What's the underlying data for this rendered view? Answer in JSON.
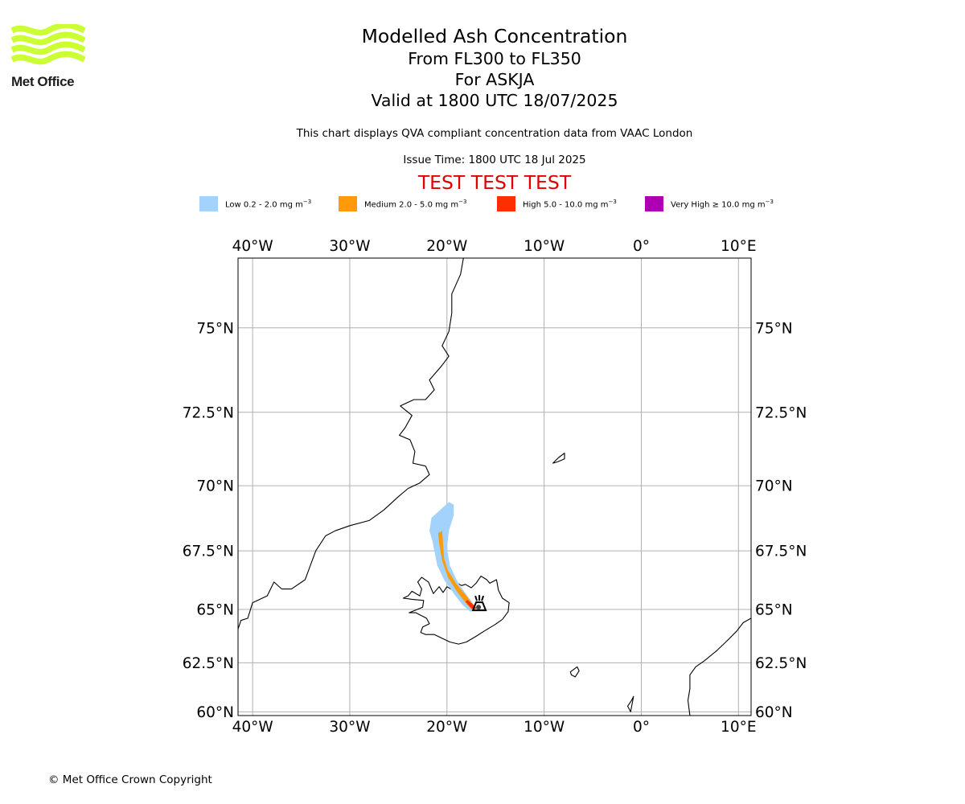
{
  "logo": {
    "text": "Met Office",
    "color": "#ccff33"
  },
  "titles": {
    "main": "Modelled Ash Concentration",
    "levels": "From FL300 to FL350",
    "volcano": "For ASKJA",
    "valid": "Valid at 1800 UTC 18/07/2025"
  },
  "notes": {
    "source": "This chart displays QVA compliant concentration data from VAAC London",
    "issue_time": "Issue Time: 1800 UTC 18 Jul 2025"
  },
  "banner": {
    "text": "TEST TEST TEST",
    "color": "#e00000"
  },
  "legend": [
    {
      "label": "Low 0.2 - 2.0 mg m",
      "unit_exp": "−3",
      "color": "#a3d3fd"
    },
    {
      "label": "Medium 2.0 - 5.0 mg m",
      "unit_exp": "−3",
      "color": "#ff9a0a"
    },
    {
      "label": "High 5.0 - 10.0 mg m",
      "unit_exp": "−3",
      "color": "#ff2e00"
    },
    {
      "label": "Very High  ≥  10.0 mg m",
      "unit_exp": "−3",
      "color": "#ad00b3"
    }
  ],
  "map": {
    "projection": "Mercator",
    "lon_range": [
      -41.5,
      11.3
    ],
    "lat_range": [
      59.8,
      76.8
    ],
    "gridlines": true,
    "lon_ticks": [
      {
        "value": -40,
        "label": "40°W"
      },
      {
        "value": -30,
        "label": "30°W"
      },
      {
        "value": -20,
        "label": "20°W"
      },
      {
        "value": -10,
        "label": "10°W"
      },
      {
        "value": 0,
        "label": "0°"
      },
      {
        "value": 10,
        "label": "10°E"
      }
    ],
    "lat_ticks": [
      {
        "value": 60,
        "label": "60°N"
      },
      {
        "value": 62.5,
        "label": "62.5°N"
      },
      {
        "value": 65,
        "label": "65°N"
      },
      {
        "value": 67.5,
        "label": "67.5°N"
      },
      {
        "value": 70,
        "label": "70°N"
      },
      {
        "value": 72.5,
        "label": "72.5°N"
      },
      {
        "value": 75,
        "label": "75°N"
      }
    ],
    "volcano_symbol": {
      "name": "ASKJA",
      "lon": -16.75,
      "lat": 65.03
    },
    "ash_low": [
      [
        -21.5,
        67.9
      ],
      [
        -21.8,
        68.3
      ],
      [
        -21.6,
        68.8
      ],
      [
        -20.7,
        69.1
      ],
      [
        -19.8,
        69.4
      ],
      [
        -19.3,
        69.3
      ],
      [
        -19.3,
        68.9
      ],
      [
        -19.8,
        68.3
      ],
      [
        -20.0,
        67.6
      ],
      [
        -19.7,
        66.9
      ],
      [
        -18.9,
        66.2
      ],
      [
        -17.9,
        65.6
      ],
      [
        -17.2,
        65.2
      ],
      [
        -16.9,
        65.0
      ],
      [
        -17.6,
        64.9
      ],
      [
        -18.4,
        65.2
      ],
      [
        -19.3,
        65.7
      ],
      [
        -20.3,
        66.3
      ],
      [
        -21.0,
        66.9
      ]
    ],
    "ash_medium": [
      [
        -20.8,
        67.8
      ],
      [
        -20.9,
        68.2
      ],
      [
        -20.5,
        68.3
      ],
      [
        -20.4,
        67.8
      ],
      [
        -20.3,
        67.2
      ],
      [
        -19.9,
        66.7
      ],
      [
        -19.0,
        66.1
      ],
      [
        -18.0,
        65.6
      ],
      [
        -17.3,
        65.2
      ],
      [
        -17.0,
        65.02
      ],
      [
        -17.5,
        65.0
      ],
      [
        -18.1,
        65.3
      ],
      [
        -19.0,
        65.8
      ],
      [
        -19.9,
        66.4
      ],
      [
        -20.5,
        67.1
      ]
    ],
    "ash_high": [
      [
        -17.9,
        65.42
      ],
      [
        -17.2,
        65.18
      ],
      [
        -16.95,
        65.05
      ],
      [
        -17.35,
        65.0
      ],
      [
        -17.7,
        65.15
      ],
      [
        -18.1,
        65.35
      ]
    ],
    "coastlines": {
      "iceland": [
        [
          -24.5,
          65.5
        ],
        [
          -24.0,
          65.6
        ],
        [
          -23.6,
          65.8
        ],
        [
          -22.8,
          65.6
        ],
        [
          -22.6,
          65.9
        ],
        [
          -23.0,
          66.2
        ],
        [
          -22.6,
          66.4
        ],
        [
          -21.9,
          66.2
        ],
        [
          -21.4,
          65.7
        ],
        [
          -20.8,
          66.0
        ],
        [
          -20.4,
          65.75
        ],
        [
          -20.0,
          66.0
        ],
        [
          -19.4,
          65.85
        ],
        [
          -18.9,
          66.15
        ],
        [
          -18.5,
          66.05
        ],
        [
          -18.1,
          66.1
        ],
        [
          -17.5,
          65.95
        ],
        [
          -17.0,
          66.15
        ],
        [
          -16.5,
          66.45
        ],
        [
          -15.9,
          66.3
        ],
        [
          -15.6,
          66.15
        ],
        [
          -14.9,
          66.3
        ],
        [
          -14.7,
          65.85
        ],
        [
          -14.3,
          65.5
        ],
        [
          -13.6,
          65.3
        ],
        [
          -13.7,
          64.9
        ],
        [
          -14.3,
          64.55
        ],
        [
          -15.1,
          64.3
        ],
        [
          -16.2,
          64.0
        ],
        [
          -16.9,
          63.8
        ],
        [
          -18.0,
          63.5
        ],
        [
          -18.8,
          63.4
        ],
        [
          -19.7,
          63.5
        ],
        [
          -20.6,
          63.7
        ],
        [
          -21.3,
          63.85
        ],
        [
          -22.2,
          63.85
        ],
        [
          -22.7,
          63.95
        ],
        [
          -22.5,
          64.2
        ],
        [
          -21.8,
          64.35
        ],
        [
          -22.1,
          64.6
        ],
        [
          -23.2,
          64.85
        ],
        [
          -23.9,
          64.85
        ],
        [
          -22.5,
          65.1
        ],
        [
          -22.4,
          65.4
        ],
        [
          -23.6,
          65.45
        ],
        [
          -24.5,
          65.5
        ]
      ],
      "greenland": [
        [
          -41.5,
          64.1
        ],
        [
          -41.2,
          64.5
        ],
        [
          -40.5,
          64.6
        ],
        [
          -40.0,
          65.3
        ],
        [
          -38.5,
          65.6
        ],
        [
          -37.8,
          66.2
        ],
        [
          -37.0,
          65.9
        ],
        [
          -36.0,
          65.9
        ],
        [
          -34.6,
          66.3
        ],
        [
          -33.5,
          67.5
        ],
        [
          -32.5,
          68.1
        ],
        [
          -31.5,
          68.3
        ],
        [
          -30.0,
          68.5
        ],
        [
          -28.0,
          68.7
        ],
        [
          -26.5,
          69.1
        ],
        [
          -25.0,
          69.6
        ],
        [
          -24.0,
          69.9
        ],
        [
          -22.8,
          70.1
        ],
        [
          -21.8,
          70.4
        ],
        [
          -22.2,
          70.7
        ],
        [
          -23.5,
          70.8
        ],
        [
          -23.3,
          71.2
        ],
        [
          -23.8,
          71.6
        ],
        [
          -24.9,
          71.75
        ],
        [
          -24.3,
          72.0
        ],
        [
          -23.6,
          72.4
        ],
        [
          -24.8,
          72.7
        ],
        [
          -23.4,
          72.9
        ],
        [
          -22.2,
          72.9
        ],
        [
          -21.3,
          73.2
        ],
        [
          -21.8,
          73.5
        ],
        [
          -20.6,
          73.9
        ],
        [
          -19.8,
          74.2
        ],
        [
          -20.5,
          74.5
        ],
        [
          -19.8,
          74.9
        ],
        [
          -19.5,
          75.4
        ],
        [
          -19.5,
          75.9
        ],
        [
          -18.6,
          76.4
        ],
        [
          -18.3,
          76.8
        ]
      ],
      "jan_mayen": [
        [
          -9.1,
          70.8
        ],
        [
          -8.5,
          71.0
        ],
        [
          -7.9,
          71.15
        ],
        [
          -7.9,
          70.95
        ],
        [
          -8.6,
          70.85
        ],
        [
          -9.1,
          70.8
        ]
      ],
      "faroes": [
        [
          -7.3,
          62.05
        ],
        [
          -6.6,
          62.3
        ],
        [
          -6.4,
          62.1
        ],
        [
          -6.8,
          61.8
        ],
        [
          -7.2,
          61.9
        ],
        [
          -7.3,
          62.05
        ]
      ],
      "shetland": [
        [
          -1.4,
          60.3
        ],
        [
          -1.0,
          60.6
        ],
        [
          -0.8,
          60.8
        ],
        [
          -1.1,
          60.0
        ],
        [
          -1.4,
          60.3
        ]
      ],
      "norway": [
        [
          5.0,
          59.8
        ],
        [
          4.8,
          60.6
        ],
        [
          5.0,
          61.2
        ],
        [
          5.0,
          61.9
        ],
        [
          5.6,
          62.3
        ],
        [
          6.5,
          62.6
        ],
        [
          7.8,
          63.1
        ],
        [
          8.7,
          63.5
        ],
        [
          9.8,
          64.0
        ],
        [
          10.5,
          64.4
        ],
        [
          11.3,
          64.6
        ]
      ]
    }
  }
}
